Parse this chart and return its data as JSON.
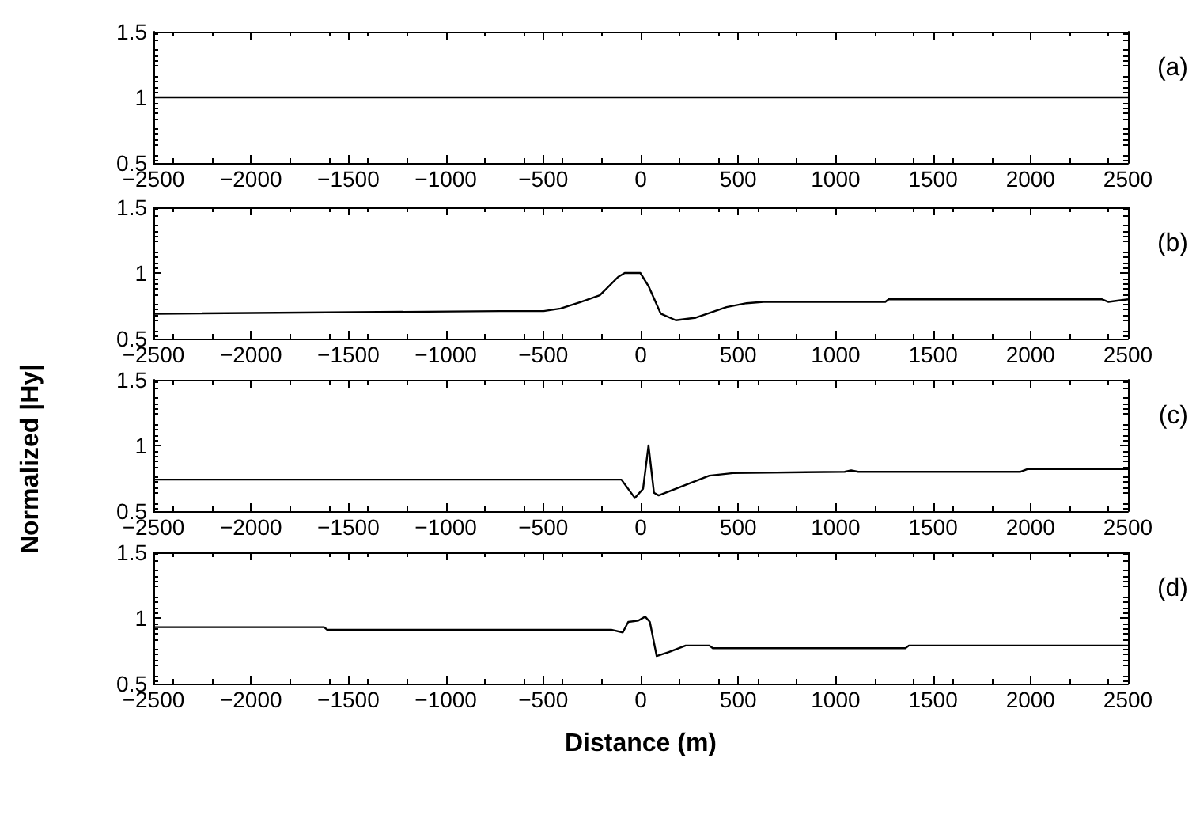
{
  "chart_data": [
    {
      "type": "line",
      "title": "(a)",
      "color": "#000000",
      "xlim": [
        -2500,
        2500
      ],
      "xticks": [
        -2500,
        -2000,
        -1500,
        -1000,
        -500,
        0,
        500,
        1000,
        1500,
        2000,
        2500
      ],
      "ylim": [
        0.5,
        1.5
      ],
      "yticks": [
        0.5,
        1,
        1.5
      ],
      "x": [
        -2500,
        2500
      ],
      "values": [
        1,
        1
      ]
    },
    {
      "type": "line",
      "title": "(b)",
      "ylabel": "Normalized |Hy|",
      "color": "#000000",
      "xlim": [
        -2500,
        2500
      ],
      "xticks": [
        -2500,
        -2000,
        -1500,
        -1000,
        -500,
        0,
        500,
        1000,
        1500,
        2000,
        2500
      ],
      "ylim": [
        0.5,
        1.5
      ],
      "yticks": [
        0.5,
        1,
        1.5
      ],
      "x": [
        -2500,
        -723,
        -498,
        -411,
        -307,
        -210,
        -116,
        -82,
        -2,
        40,
        103,
        180,
        283,
        440,
        543,
        630,
        1255,
        1272,
        2365,
        2400,
        2500
      ],
      "values": [
        0.69,
        0.71,
        0.71,
        0.73,
        0.78,
        0.83,
        0.97,
        1.0,
        1.0,
        0.9,
        0.69,
        0.64,
        0.66,
        0.74,
        0.77,
        0.78,
        0.78,
        0.8,
        0.8,
        0.78,
        0.8
      ]
    },
    {
      "type": "line",
      "title": "(c)",
      "color": "#000000",
      "xlim": [
        -2500,
        2500
      ],
      "xticks": [
        -2500,
        -2000,
        -1500,
        -1000,
        -500,
        0,
        500,
        1000,
        1500,
        2000,
        2500
      ],
      "ylim": [
        0.5,
        1.5
      ],
      "yticks": [
        0.5,
        1,
        1.5
      ],
      "x": [
        -2500,
        -99,
        -30,
        12,
        40,
        68,
        92,
        352,
        474,
        1046,
        1080,
        1116,
        1949,
        1984,
        2500
      ],
      "values": [
        0.74,
        0.74,
        0.6,
        0.67,
        1.0,
        0.64,
        0.62,
        0.77,
        0.79,
        0.8,
        0.81,
        0.8,
        0.8,
        0.82,
        0.82
      ]
    },
    {
      "type": "line",
      "title": "(d)",
      "xlabel": "Distance (m)",
      "color": "#000000",
      "xlim": [
        -2500,
        2500
      ],
      "xticks": [
        -2500,
        -2000,
        -1500,
        -1000,
        -500,
        0,
        500,
        1000,
        1500,
        2000,
        2500
      ],
      "ylim": [
        0.5,
        1.5
      ],
      "yticks": [
        0.5,
        1,
        1.5
      ],
      "x": [
        -2500,
        -1625,
        -1608,
        -151,
        -92,
        -64,
        -12,
        23,
        47,
        82,
        144,
        231,
        352,
        370,
        1359,
        1376,
        2500
      ],
      "values": [
        0.93,
        0.93,
        0.91,
        0.91,
        0.89,
        0.97,
        0.98,
        1.01,
        0.97,
        0.71,
        0.74,
        0.79,
        0.79,
        0.77,
        0.77,
        0.79,
        0.79
      ]
    }
  ]
}
